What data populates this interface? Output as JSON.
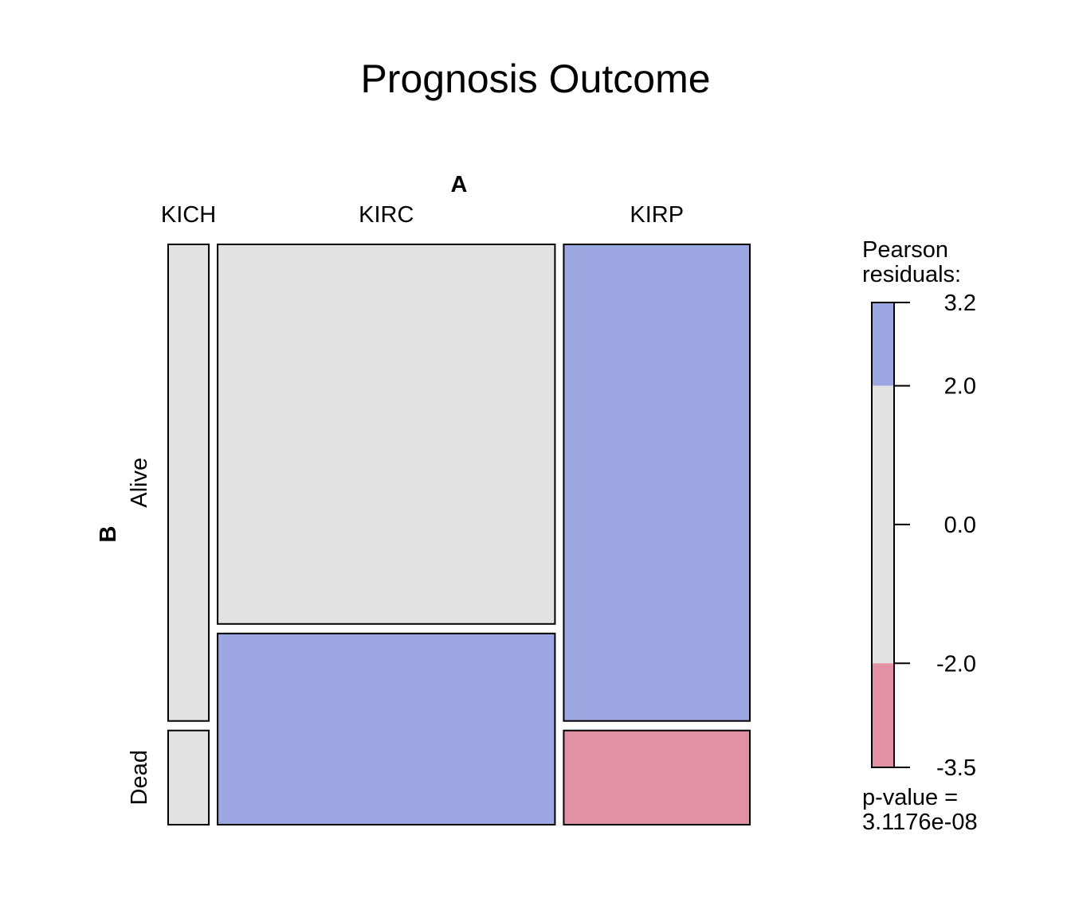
{
  "chart_data": {
    "type": "mosaic",
    "title": "Prognosis Outcome",
    "x_variable": "A",
    "y_variable": "B",
    "x_categories": [
      "KICH",
      "KIRC",
      "KIRP"
    ],
    "y_categories": [
      "Alive",
      "Dead"
    ],
    "x_proportions": [
      0.07,
      0.58,
      0.32
    ],
    "cells": [
      {
        "x": "KICH",
        "y": "Alive",
        "proportion": 0.835,
        "residual_band": "neutral"
      },
      {
        "x": "KICH",
        "y": "Dead",
        "proportion": 0.165,
        "residual_band": "neutral"
      },
      {
        "x": "KIRC",
        "y": "Alive",
        "proportion": 0.665,
        "residual_band": "neutral"
      },
      {
        "x": "KIRC",
        "y": "Dead",
        "proportion": 0.335,
        "residual_band": "positive"
      },
      {
        "x": "KIRP",
        "y": "Alive",
        "proportion": 0.835,
        "residual_band": "positive"
      },
      {
        "x": "KIRP",
        "y": "Dead",
        "proportion": 0.165,
        "residual_band": "negative"
      }
    ],
    "legend": {
      "title_line1": "Pearson",
      "title_line2": "residuals:",
      "range": [
        -3.5,
        3.2
      ],
      "ticks": [
        3.2,
        2.0,
        0.0,
        -2.0,
        -3.5
      ],
      "tick_labels": [
        "3.2",
        "2.0",
        "0.0",
        "-2.0",
        "-3.5"
      ],
      "bands": [
        {
          "from": 2.0,
          "to": 3.2,
          "color": "#9CA7E2"
        },
        {
          "from": -2.0,
          "to": 2.0,
          "color": "#E2E2E2"
        },
        {
          "from": -3.5,
          "to": -2.0,
          "color": "#E290A3"
        }
      ],
      "pvalue_line1": "p-value =",
      "pvalue_line2": "3.1176e-08"
    },
    "colors": {
      "positive": "#9CA7E2",
      "neutral": "#E2E2E2",
      "negative": "#E290A3",
      "border": "#000000"
    }
  }
}
